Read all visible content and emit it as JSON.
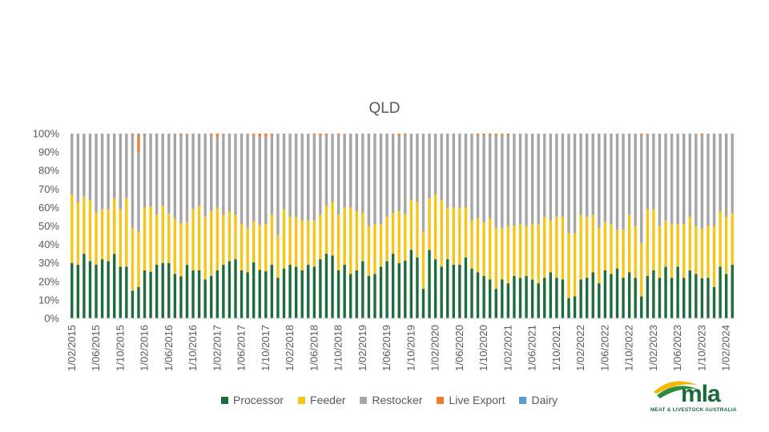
{
  "chart_data": {
    "type": "bar",
    "stacked": true,
    "percent_stacked": true,
    "title": "QLD",
    "y_ticks": [
      "0%",
      "10%",
      "20%",
      "30%",
      "40%",
      "50%",
      "60%",
      "70%",
      "80%",
      "90%",
      "100%"
    ],
    "x_tick_labels": [
      "1/02/2015",
      "1/06/2015",
      "1/10/2015",
      "1/02/2016",
      "1/06/2016",
      "1/10/2016",
      "1/02/2017",
      "1/06/2017",
      "1/10/2017",
      "1/02/2018",
      "1/06/2018",
      "1/10/2018",
      "1/02/2019",
      "1/06/2019",
      "1/10/2019",
      "1/02/2020",
      "1/06/2020",
      "1/10/2020",
      "1/02/2021",
      "1/06/2021",
      "1/10/2021",
      "1/02/2022",
      "1/06/2022",
      "1/10/2022",
      "1/02/2023",
      "1/06/2023",
      "1/10/2023",
      "1/02/2024"
    ],
    "grid": false,
    "legend_position": "bottom",
    "series": [
      {
        "name": "Processor",
        "color": "#1e6b3c",
        "values": [
          30,
          29,
          35,
          31,
          29,
          32,
          31,
          35,
          28,
          28,
          15,
          17,
          26,
          25,
          29,
          30,
          30,
          24,
          23,
          29,
          26,
          26,
          21,
          23,
          26,
          29,
          31,
          32,
          26,
          25,
          30,
          26,
          25,
          29,
          22,
          27,
          29,
          28,
          26,
          29,
          28,
          32,
          35,
          34,
          26,
          29,
          24,
          26,
          31,
          23,
          24,
          28,
          31,
          35,
          30,
          31,
          37,
          33,
          16,
          37,
          32,
          28,
          32,
          29,
          29,
          33,
          27,
          25,
          23,
          21,
          16,
          21,
          19,
          23,
          22,
          23,
          21,
          19,
          22,
          25,
          22,
          21,
          11,
          12,
          21,
          22,
          25,
          19,
          26,
          24,
          27,
          22,
          25,
          22,
          12,
          23,
          26,
          22,
          28,
          22,
          28,
          22,
          26,
          24,
          22,
          22,
          17,
          28,
          24,
          29
        ]
      },
      {
        "name": "Feeder",
        "color": "#f5c518",
        "values": [
          37,
          34,
          31,
          33,
          28,
          27,
          28,
          30,
          31,
          37,
          34,
          30,
          34,
          35,
          27,
          31,
          27,
          30,
          29,
          23,
          33,
          35,
          34,
          35,
          34,
          27,
          27,
          24,
          25,
          24,
          22,
          24,
          25,
          27,
          23,
          32,
          26,
          27,
          27,
          24,
          25,
          24,
          26,
          29,
          30,
          31,
          36,
          32,
          26,
          27,
          27,
          23,
          24,
          22,
          28,
          25,
          27,
          30,
          31,
          28,
          35,
          36,
          28,
          31,
          31,
          27,
          26,
          29,
          29,
          33,
          33,
          28,
          31,
          27,
          29,
          27,
          30,
          32,
          33,
          28,
          33,
          34,
          35,
          34,
          35,
          33,
          31,
          30,
          26,
          27,
          21,
          26,
          31,
          28,
          29,
          36,
          33,
          28,
          25,
          29,
          23,
          29,
          29,
          26,
          27,
          28,
          33,
          30,
          31,
          28
        ]
      },
      {
        "name": "Restocker",
        "color": "#a6a6a6",
        "values": [
          33,
          37,
          34,
          36,
          43,
          41,
          41,
          35,
          41,
          35,
          50,
          43,
          39,
          39,
          44,
          39,
          43,
          46,
          48,
          48,
          41,
          39,
          45,
          41,
          38,
          44,
          42,
          44,
          49,
          51,
          46,
          47,
          46,
          43,
          55,
          41,
          45,
          45,
          47,
          47,
          46,
          43,
          38,
          37,
          43,
          40,
          40,
          42,
          43,
          50,
          49,
          49,
          45,
          43,
          41,
          42,
          36,
          37,
          53,
          35,
          33,
          36,
          40,
          40,
          40,
          40,
          47,
          45,
          47,
          45,
          50,
          50,
          49,
          50,
          49,
          50,
          49,
          49,
          45,
          47,
          45,
          45,
          54,
          54,
          44,
          45,
          44,
          51,
          48,
          49,
          52,
          52,
          44,
          50,
          59,
          41,
          41,
          50,
          47,
          49,
          49,
          49,
          45,
          50,
          51,
          50,
          50,
          42,
          45,
          43
        ]
      },
      {
        "name": "Live Export",
        "color": "#ed7d31",
        "values": [
          0,
          0,
          0,
          0,
          0,
          0,
          0,
          0,
          0,
          0,
          1,
          9,
          1,
          0,
          0,
          0,
          0,
          0,
          1,
          0,
          0,
          0,
          0,
          1,
          2,
          0,
          0,
          0,
          0,
          0,
          1,
          2,
          2,
          1,
          0,
          0,
          0,
          0,
          0,
          0,
          1,
          1,
          1,
          0,
          1,
          0,
          0,
          0,
          0,
          0,
          0,
          0,
          0,
          0,
          1,
          1,
          0,
          0,
          0,
          0,
          0,
          0,
          0,
          0,
          0,
          0,
          0,
          1,
          1,
          1,
          1,
          1,
          1,
          0,
          0,
          0,
          0,
          0,
          0,
          0,
          0,
          0,
          0,
          0,
          0,
          0,
          0,
          0,
          0,
          0,
          0,
          0,
          0,
          0,
          1,
          0,
          0,
          0,
          0,
          0,
          0,
          0,
          0,
          0,
          1,
          0,
          0,
          0,
          0,
          0
        ]
      },
      {
        "name": "Dairy",
        "color": "#5b9bd5",
        "values": [
          0,
          0,
          0,
          0,
          0,
          0,
          0,
          0,
          0,
          0,
          0,
          1,
          0,
          0,
          0,
          0,
          0,
          0,
          0,
          0,
          0,
          0,
          0,
          0,
          0,
          0,
          0,
          0,
          0,
          0,
          0,
          0,
          0,
          0,
          0,
          0,
          0,
          0,
          0,
          0,
          0,
          0,
          0,
          0,
          0,
          0,
          0,
          0,
          0,
          0,
          0,
          0,
          0,
          0,
          0,
          0,
          0,
          0,
          0,
          0,
          0,
          0,
          0,
          0,
          0,
          0,
          0,
          0,
          0,
          0,
          0,
          0,
          0,
          0,
          0,
          0,
          0,
          0,
          0,
          0,
          0,
          0,
          0,
          0,
          0,
          0,
          0,
          0,
          0,
          0,
          0,
          0,
          0,
          0,
          0,
          0,
          0,
          0,
          0,
          0,
          0,
          0,
          0,
          0,
          0,
          0,
          0,
          0,
          0,
          0
        ]
      }
    ]
  },
  "logo": {
    "text": "mla",
    "subtitle": "MEAT & LIVESTOCK AUSTRALIA"
  }
}
